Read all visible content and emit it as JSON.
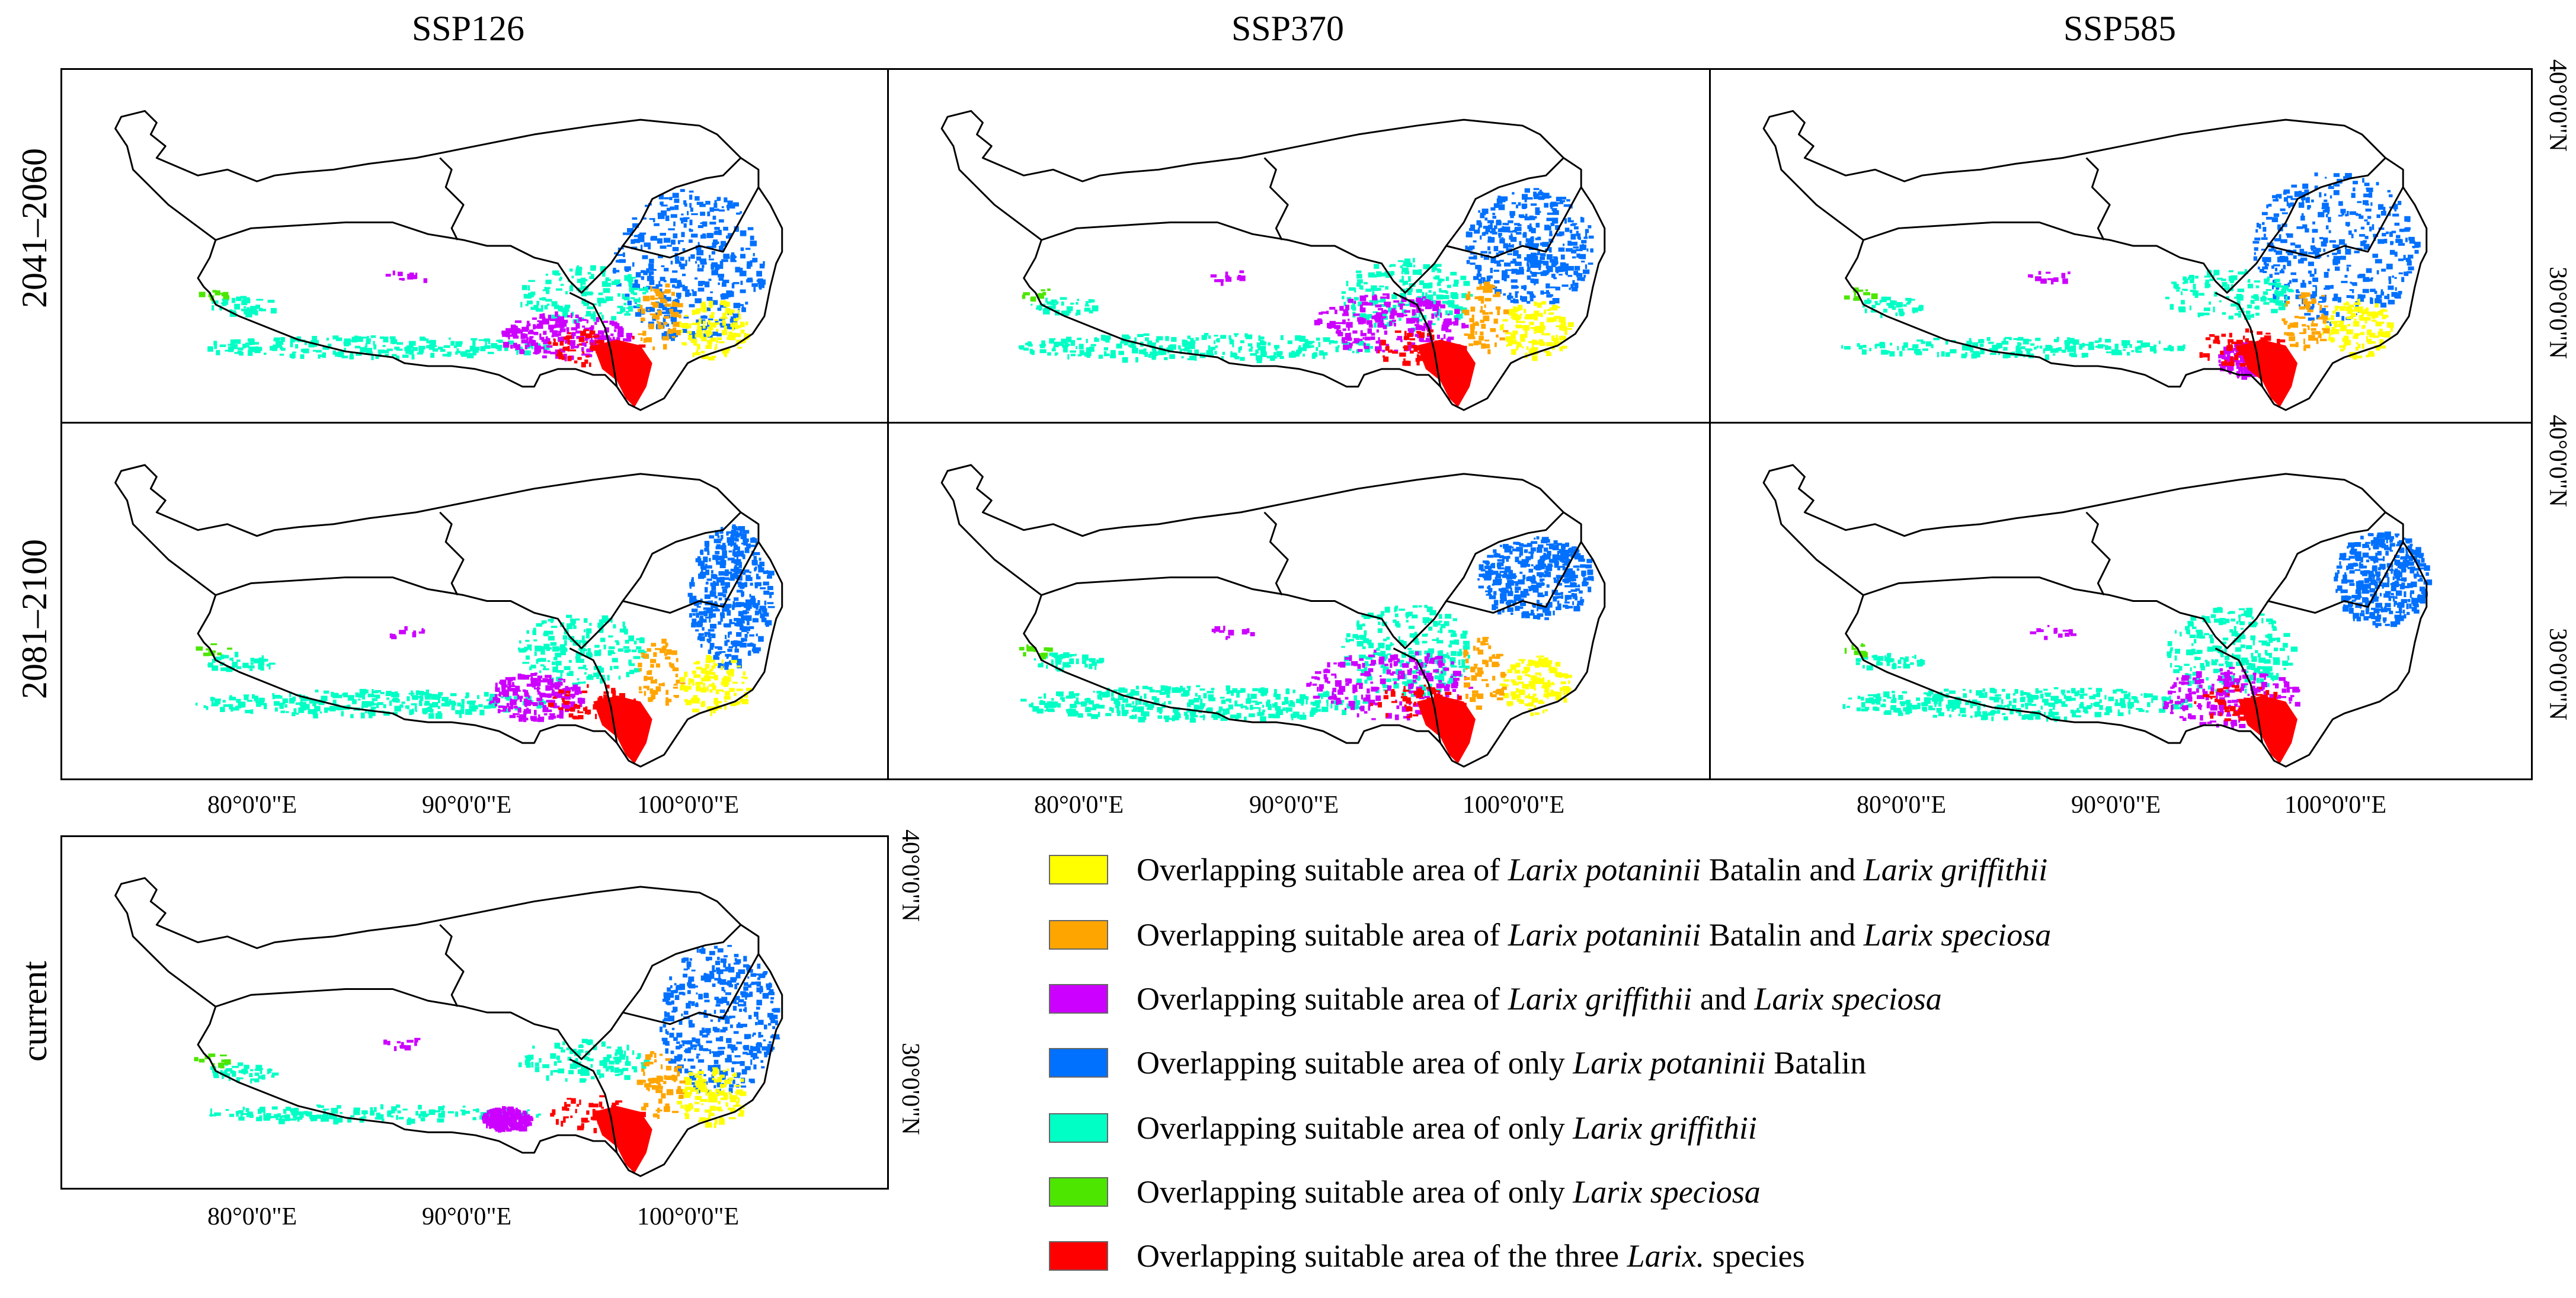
{
  "columns": [
    "SSP126",
    "SSP370",
    "SSP585"
  ],
  "rows": [
    "2041–2060",
    "2081–2100"
  ],
  "current_label": "current",
  "lon_ticks": [
    "80°0'0\"E",
    "90°0'0\"E",
    "100°0'0\"E"
  ],
  "lat_ticks": [
    "40°0'0\"N",
    "30°0'0\"N"
  ],
  "legend": [
    {
      "color": "#ffff00",
      "parts": [
        {
          "t": "Overlapping suitable area of "
        },
        {
          "t": "Larix potaninii",
          "i": true
        },
        {
          "t": " Batalin and "
        },
        {
          "t": "Larix griffithii",
          "i": true
        }
      ]
    },
    {
      "color": "#ffa500",
      "parts": [
        {
          "t": "Overlapping suitable area of "
        },
        {
          "t": "Larix potaninii",
          "i": true
        },
        {
          "t": " Batalin and "
        },
        {
          "t": "Larix speciosa",
          "i": true
        }
      ]
    },
    {
      "color": "#cc00ff",
      "parts": [
        {
          "t": "Overlapping suitable area of  "
        },
        {
          "t": "Larix griffithii",
          "i": true
        },
        {
          "t": " and "
        },
        {
          "t": "Larix speciosa",
          "i": true
        }
      ]
    },
    {
      "color": "#0070ff",
      "parts": [
        {
          "t": "Overlapping suitable area of only "
        },
        {
          "t": "Larix potaninii",
          "i": true
        },
        {
          "t": " Batalin"
        }
      ]
    },
    {
      "color": "#00ffc5",
      "parts": [
        {
          "t": "Overlapping suitable area of only "
        },
        {
          "t": "Larix griffithii",
          "i": true
        }
      ]
    },
    {
      "color": "#4ce600",
      "parts": [
        {
          "t": "Overlapping suitable area of only "
        },
        {
          "t": "Larix speciosa",
          "i": true
        }
      ]
    },
    {
      "color": "#ff0000",
      "parts": [
        {
          "t": "Overlapping suitable area of  the three "
        },
        {
          "t": "Larix.",
          "i": true
        },
        {
          "t": "  species"
        }
      ]
    }
  ]
}
